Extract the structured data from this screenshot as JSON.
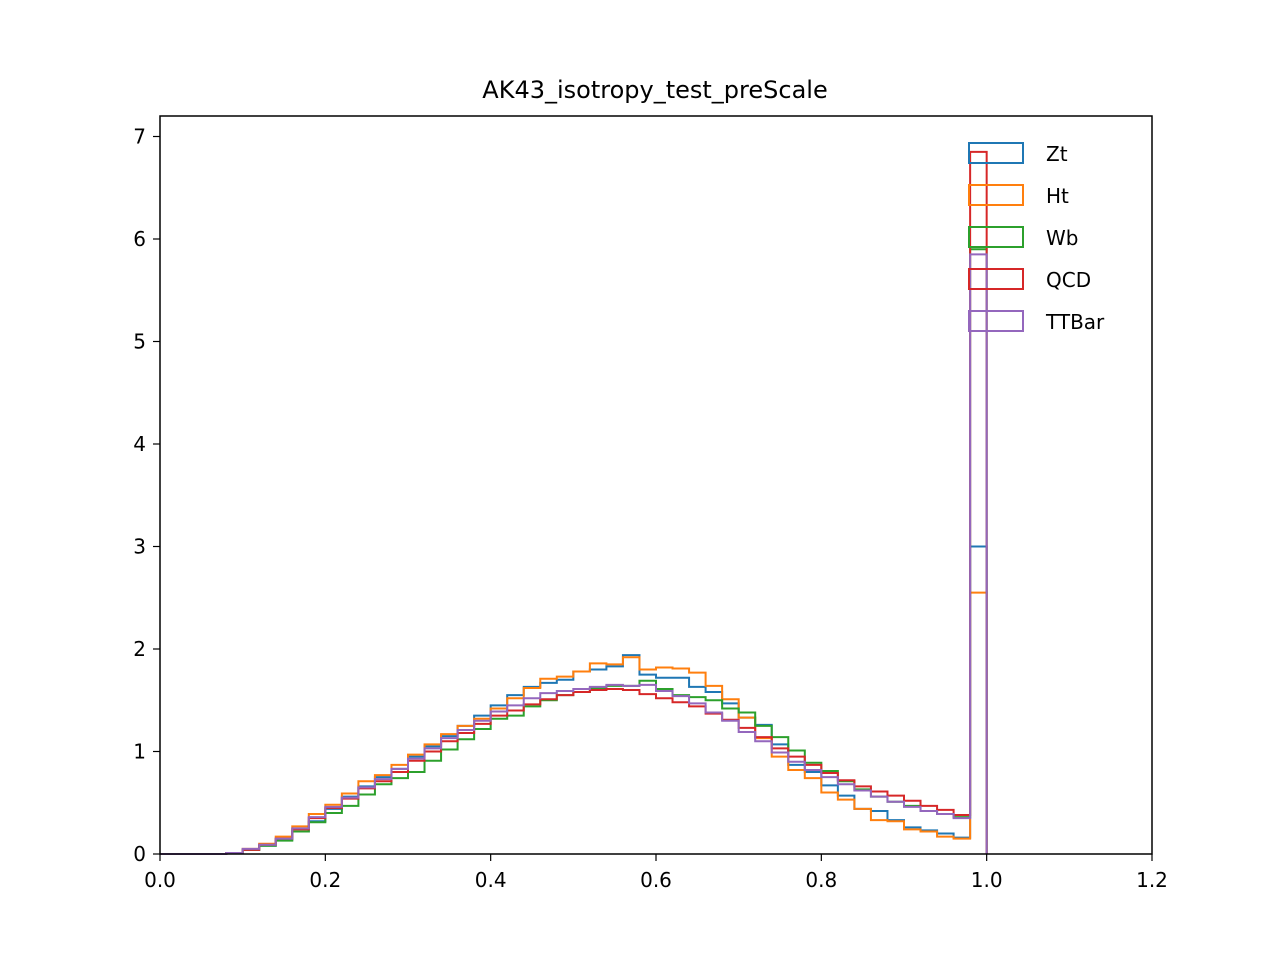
{
  "chart_data": {
    "type": "histogram-step",
    "title": "AK43_isotropy_test_preScale",
    "xlabel": "",
    "ylabel": "",
    "xlim": [
      0.0,
      1.2
    ],
    "ylim": [
      0,
      7.2
    ],
    "xticks": [
      "0.0",
      "0.2",
      "0.4",
      "0.6",
      "0.8",
      "1.0",
      "1.2"
    ],
    "yticks": [
      "0",
      "1",
      "2",
      "3",
      "4",
      "5",
      "6",
      "7"
    ],
    "grid": false,
    "legend_position": "top-right",
    "bin_edges_start": 0.0,
    "bin_width": 0.02,
    "bin_count": 50,
    "series": [
      {
        "name": "Zt",
        "color": "#1f77b4",
        "values": [
          0,
          0,
          0,
          0,
          0.01,
          0.04,
          0.08,
          0.14,
          0.22,
          0.32,
          0.44,
          0.56,
          0.66,
          0.75,
          0.83,
          0.95,
          1.05,
          1.15,
          1.25,
          1.35,
          1.45,
          1.55,
          1.63,
          1.67,
          1.7,
          1.78,
          1.8,
          1.83,
          1.94,
          1.75,
          1.72,
          1.72,
          1.63,
          1.58,
          1.47,
          1.33,
          1.26,
          1.07,
          0.87,
          0.8,
          0.67,
          0.57,
          0.44,
          0.42,
          0.33,
          0.26,
          0.23,
          0.2,
          0.16,
          3.0
        ]
      },
      {
        "name": "Ht",
        "color": "#ff7f0e",
        "values": [
          0,
          0,
          0,
          0,
          0.01,
          0.05,
          0.1,
          0.17,
          0.27,
          0.39,
          0.48,
          0.59,
          0.71,
          0.77,
          0.87,
          0.97,
          1.07,
          1.17,
          1.25,
          1.32,
          1.42,
          1.52,
          1.62,
          1.71,
          1.73,
          1.78,
          1.86,
          1.85,
          1.92,
          1.8,
          1.82,
          1.81,
          1.77,
          1.64,
          1.51,
          1.33,
          1.13,
          0.95,
          0.82,
          0.74,
          0.6,
          0.53,
          0.44,
          0.33,
          0.32,
          0.24,
          0.22,
          0.17,
          0.15,
          2.55
        ]
      },
      {
        "name": "Wb",
        "color": "#2ca02c",
        "values": [
          0,
          0,
          0,
          0,
          0.01,
          0.04,
          0.08,
          0.13,
          0.22,
          0.31,
          0.4,
          0.47,
          0.58,
          0.68,
          0.74,
          0.8,
          0.91,
          1.02,
          1.12,
          1.22,
          1.32,
          1.35,
          1.44,
          1.5,
          1.55,
          1.58,
          1.62,
          1.64,
          1.64,
          1.69,
          1.61,
          1.55,
          1.53,
          1.5,
          1.42,
          1.38,
          1.25,
          1.14,
          1.01,
          0.89,
          0.81,
          0.71,
          0.63,
          0.56,
          0.51,
          0.47,
          0.42,
          0.39,
          0.36,
          5.9
        ]
      },
      {
        "name": "QCD",
        "color": "#d62728",
        "values": [
          0,
          0,
          0,
          0,
          0.01,
          0.04,
          0.09,
          0.15,
          0.24,
          0.35,
          0.45,
          0.54,
          0.64,
          0.71,
          0.8,
          0.91,
          1.0,
          1.1,
          1.18,
          1.27,
          1.35,
          1.4,
          1.46,
          1.51,
          1.55,
          1.58,
          1.6,
          1.61,
          1.6,
          1.56,
          1.52,
          1.48,
          1.44,
          1.37,
          1.31,
          1.23,
          1.14,
          1.03,
          0.95,
          0.87,
          0.79,
          0.72,
          0.66,
          0.61,
          0.57,
          0.52,
          0.47,
          0.43,
          0.38,
          6.85
        ]
      },
      {
        "name": "TTBar",
        "color": "#9467bd",
        "values": [
          0,
          0,
          0,
          0,
          0.01,
          0.05,
          0.09,
          0.15,
          0.25,
          0.36,
          0.46,
          0.55,
          0.65,
          0.73,
          0.83,
          0.93,
          1.03,
          1.13,
          1.21,
          1.3,
          1.39,
          1.45,
          1.52,
          1.57,
          1.59,
          1.61,
          1.63,
          1.65,
          1.64,
          1.65,
          1.59,
          1.54,
          1.47,
          1.38,
          1.3,
          1.19,
          1.1,
          0.99,
          0.9,
          0.82,
          0.75,
          0.68,
          0.62,
          0.56,
          0.51,
          0.46,
          0.42,
          0.39,
          0.35,
          5.85
        ]
      }
    ]
  }
}
